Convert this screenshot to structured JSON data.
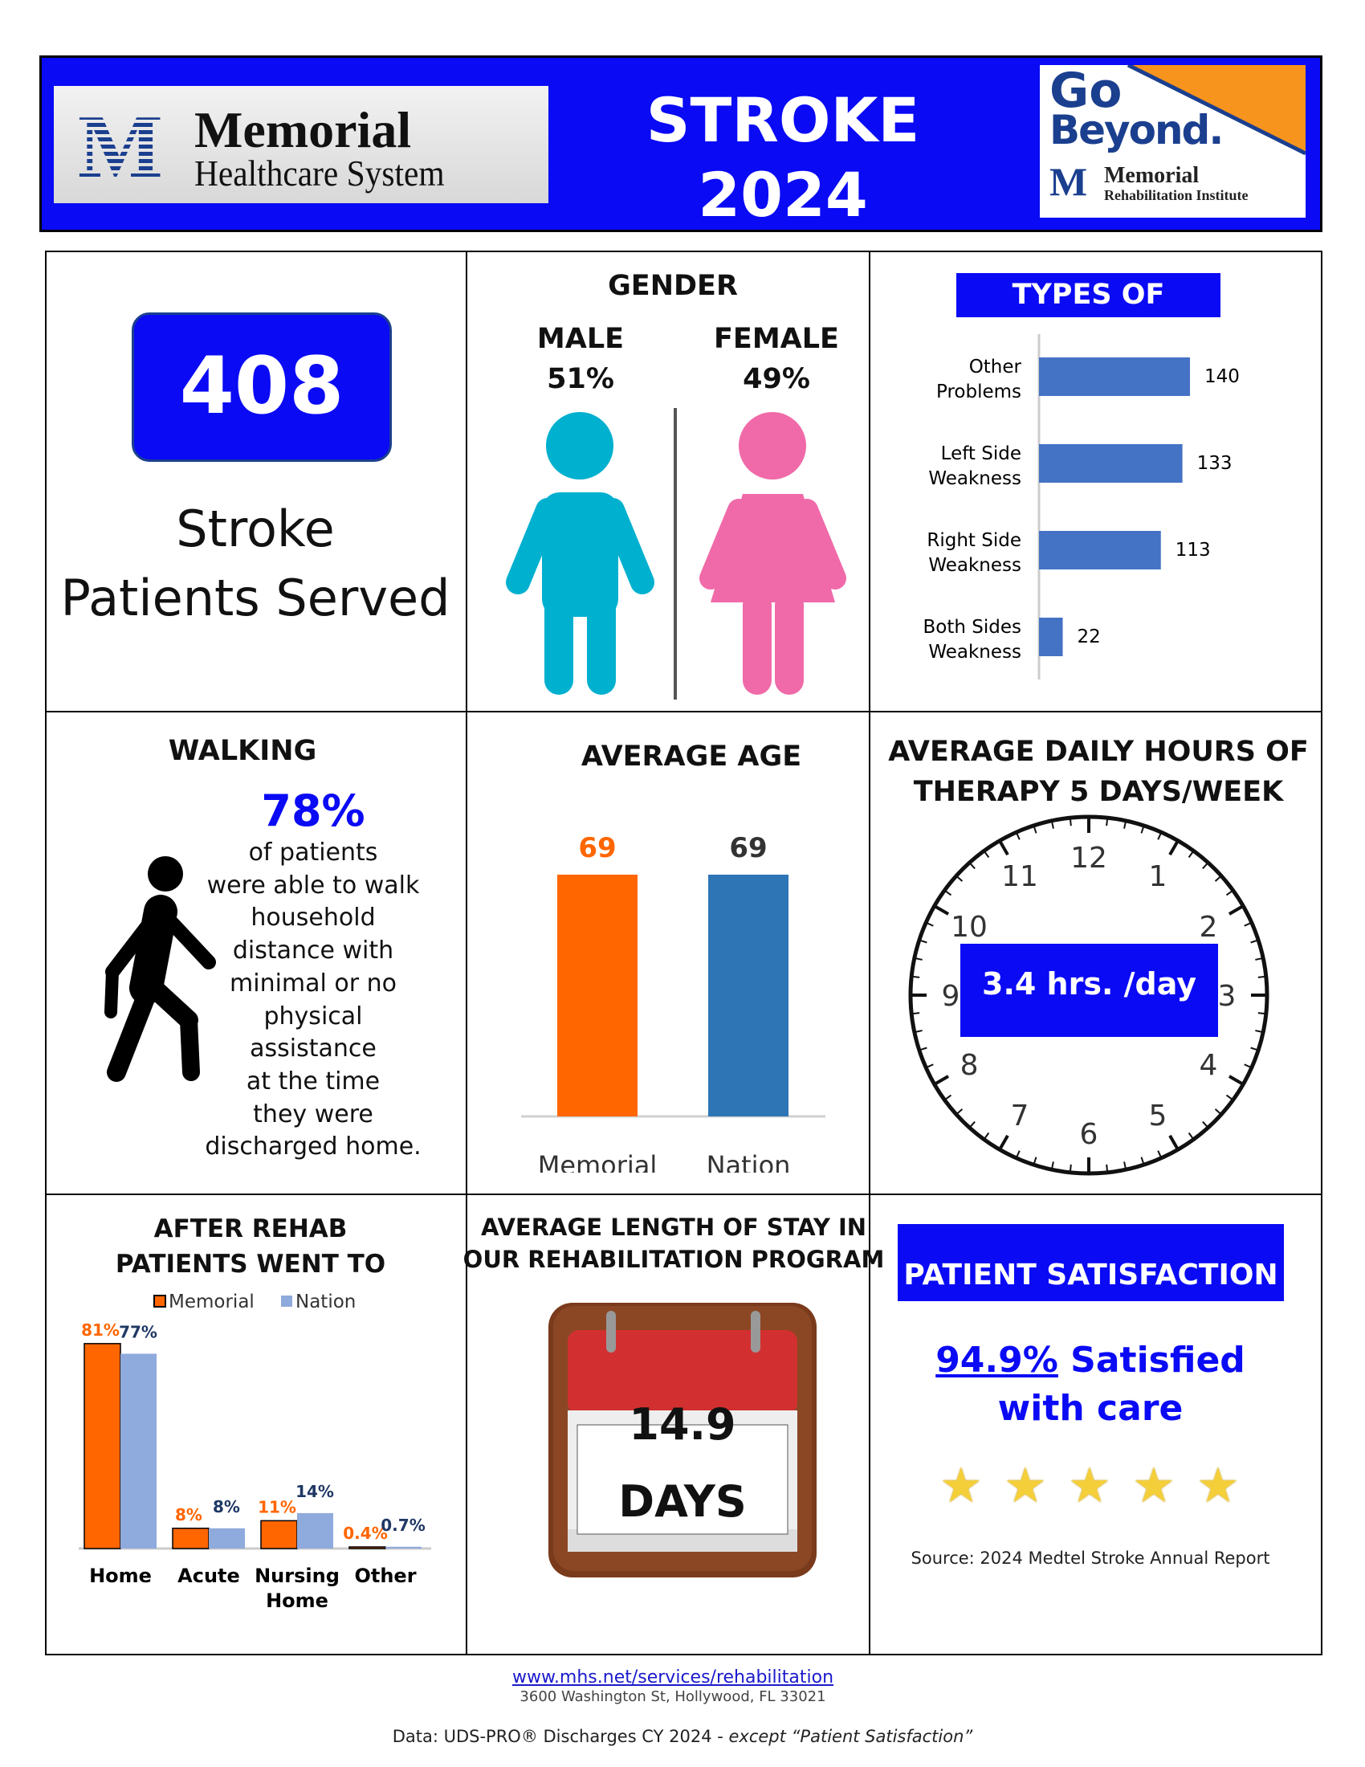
{
  "header": {
    "title_line1": "STROKE",
    "title_line2": "2024",
    "logo_left": {
      "name": "Memorial",
      "sub": "Healthcare System"
    },
    "logo_right": {
      "line1": "Go",
      "line2": "Beyond.",
      "name": "Memorial",
      "sub": "Rehabilitation Institute"
    }
  },
  "patients": {
    "count": "408",
    "label_line1": "Stroke",
    "label_line2": "Patients Served"
  },
  "gender": {
    "title": "GENDER",
    "male_label": "MALE",
    "male_pct": "51%",
    "female_label": "FEMALE",
    "female_pct": "49%",
    "male_color": "#00b0cf",
    "female_color": "#f06aa9"
  },
  "walking": {
    "title": "WALKING",
    "pct": "78%",
    "lines": [
      "of patients",
      "were able to walk",
      "household",
      "distance with",
      "minimal or no",
      "physical",
      "assistance",
      "at the time",
      "they were",
      "discharged home."
    ]
  },
  "therapy": {
    "title_line1": "AVERAGE DAILY HOURS OF",
    "title_line2": "THERAPY 5 DAYS/WEEK",
    "value": "3.4 hrs. /day",
    "clock_numbers": [
      "12",
      "1",
      "2",
      "3",
      "4",
      "5",
      "6",
      "7",
      "8",
      "9",
      "10",
      "11"
    ]
  },
  "length_of_stay": {
    "title_line1": "AVERAGE LENGTH OF STAY IN",
    "title_line2": "OUR REHABILITATION PROGRAM",
    "value": "14.9",
    "unit": "DAYS"
  },
  "satisfaction": {
    "title": "PATIENT SATISFACTION",
    "pct": "94.9%",
    "text1": " Satisfied",
    "text2": "with care",
    "stars": 5,
    "source": "Source: 2024 Medtel Stroke Annual Report"
  },
  "footer": {
    "url": "www.mhs.net/services/rehabilitation",
    "address": "3600 Washington St, Hollywood, FL 33021",
    "data_note": "Data:  UDS-PRO® Discharges CY 2024 - ",
    "data_note_italic": "except “Patient Satisfaction”"
  },
  "chart_data": [
    {
      "type": "bar",
      "orientation": "horizontal",
      "title": "TYPES OF STROKE",
      "categories": [
        "Other Problems",
        "Left Side Weakness",
        "Right Side Weakness",
        "Both Sides Weakness"
      ],
      "category_lines": [
        [
          "Other",
          "Problems"
        ],
        [
          "Left Side",
          "Weakness"
        ],
        [
          "Right Side",
          "Weakness"
        ],
        [
          "Both Sides",
          "Weakness"
        ]
      ],
      "values": [
        140,
        133,
        113,
        22
      ],
      "color": "#4472c4"
    },
    {
      "type": "bar",
      "title": "AVERAGE AGE",
      "categories": [
        "Memorial",
        "Nation"
      ],
      "values": [
        69,
        69
      ],
      "colors": [
        "#ff6600",
        "#2e75b6"
      ],
      "value_label_colors": [
        "#ff6600",
        "#333333"
      ]
    },
    {
      "type": "bar",
      "title": "AFTER REHAB PATIENTS WENT TO",
      "title_lines": [
        "AFTER REHAB",
        "PATIENTS WENT TO"
      ],
      "categories": [
        "Home",
        "Acute",
        "Nursing Home",
        "Other"
      ],
      "category_lines": [
        [
          "Home"
        ],
        [
          "Acute"
        ],
        [
          "Nursing",
          "Home"
        ],
        [
          "Other"
        ]
      ],
      "series": [
        {
          "name": "Memorial",
          "values": [
            81,
            8,
            11,
            0.4
          ],
          "labels": [
            "81%",
            "8%",
            "11%",
            "0.4%"
          ],
          "color": "#ff6600",
          "label_color": "#ff6600"
        },
        {
          "name": "Nation",
          "values": [
            77,
            8,
            14,
            0.7
          ],
          "labels": [
            "77%",
            "8%",
            "14%",
            "0.7%"
          ],
          "color": "#8faadc",
          "label_color": "#1f3864"
        }
      ],
      "legend": "top"
    }
  ]
}
